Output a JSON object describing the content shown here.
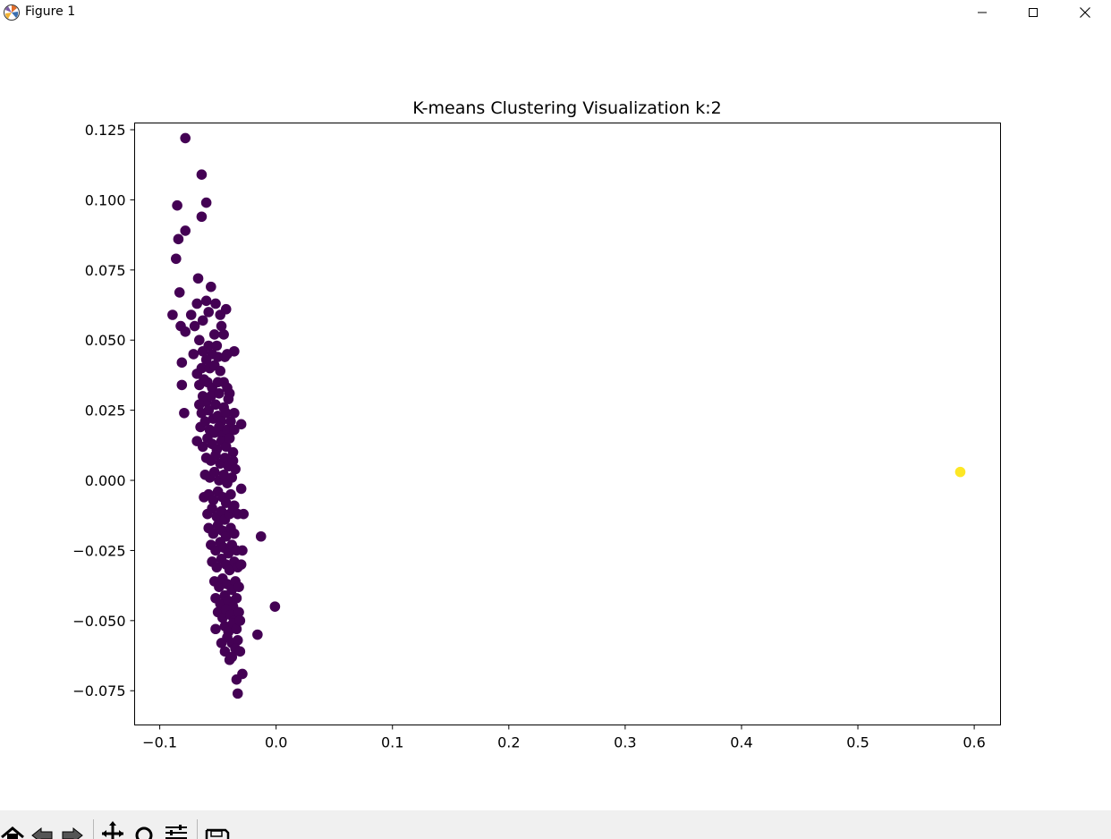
{
  "window": {
    "title": "Figure 1",
    "icons": {
      "app": "matplotlib-icon",
      "minimize": "minimize-icon",
      "maximize": "maximize-icon",
      "close": "close-icon"
    }
  },
  "toolbar": {
    "buttons": [
      "home-icon",
      "back-arrow-icon",
      "forward-arrow-icon",
      "pan-icon",
      "zoom-icon",
      "configure-subplots-icon",
      "save-icon"
    ]
  },
  "chart_data": {
    "type": "scatter",
    "title": "K-means Clustering Visualization k:2",
    "xlabel": "",
    "ylabel": "",
    "xlim": [
      -0.1216,
      0.6226
    ],
    "ylim": [
      -0.0872,
      0.1274
    ],
    "xticks": [
      -0.1,
      0.0,
      0.1,
      0.2,
      0.3,
      0.4,
      0.5,
      0.6
    ],
    "xtick_labels": [
      "−0.1",
      "0.0",
      "0.1",
      "0.2",
      "0.3",
      "0.4",
      "0.5",
      "0.6"
    ],
    "yticks": [
      -0.075,
      -0.05,
      -0.025,
      0.0,
      0.025,
      0.05,
      0.075,
      0.1,
      0.125
    ],
    "ytick_labels": [
      "−0.075",
      "−0.050",
      "−0.025",
      "0.000",
      "0.025",
      "0.050",
      "0.075",
      "0.100",
      "0.125"
    ],
    "grid": false,
    "legend": "none",
    "clusters": [
      {
        "color": "#440154",
        "points": [
          [
            -0.078,
            0.122
          ],
          [
            -0.064,
            0.109
          ],
          [
            -0.085,
            0.098
          ],
          [
            -0.06,
            0.099
          ],
          [
            -0.078,
            0.089
          ],
          [
            -0.064,
            0.094
          ],
          [
            -0.084,
            0.086
          ],
          [
            -0.086,
            0.079
          ],
          [
            -0.083,
            0.067
          ],
          [
            -0.067,
            0.072
          ],
          [
            -0.089,
            0.059
          ],
          [
            -0.082,
            0.055
          ],
          [
            -0.056,
            0.069
          ],
          [
            -0.043,
            0.061
          ],
          [
            -0.052,
            0.063
          ],
          [
            -0.06,
            0.064
          ],
          [
            -0.068,
            0.063
          ],
          [
            -0.073,
            0.059
          ],
          [
            -0.063,
            0.057
          ],
          [
            -0.048,
            0.059
          ],
          [
            -0.078,
            0.053
          ],
          [
            -0.07,
            0.055
          ],
          [
            -0.058,
            0.06
          ],
          [
            -0.053,
            0.052
          ],
          [
            -0.047,
            0.055
          ],
          [
            -0.045,
            0.052
          ],
          [
            -0.066,
            0.05
          ],
          [
            -0.071,
            0.045
          ],
          [
            -0.036,
            0.046
          ],
          [
            -0.081,
            0.042
          ],
          [
            -0.063,
            0.046
          ],
          [
            -0.058,
            0.048
          ],
          [
            -0.055,
            0.045
          ],
          [
            -0.051,
            0.048
          ],
          [
            -0.05,
            0.044
          ],
          [
            -0.044,
            0.044
          ],
          [
            -0.042,
            0.045
          ],
          [
            -0.081,
            0.034
          ],
          [
            -0.068,
            0.038
          ],
          [
            -0.064,
            0.04
          ],
          [
            -0.06,
            0.043
          ],
          [
            -0.057,
            0.04
          ],
          [
            -0.053,
            0.041
          ],
          [
            -0.048,
            0.039
          ],
          [
            -0.045,
            0.035
          ],
          [
            -0.066,
            0.034
          ],
          [
            -0.062,
            0.036
          ],
          [
            -0.059,
            0.035
          ],
          [
            -0.055,
            0.033
          ],
          [
            -0.05,
            0.035
          ],
          [
            -0.042,
            0.033
          ],
          [
            -0.04,
            0.031
          ],
          [
            -0.079,
            0.024
          ],
          [
            -0.063,
            0.03
          ],
          [
            -0.06,
            0.028
          ],
          [
            -0.056,
            0.03
          ],
          [
            -0.052,
            0.027
          ],
          [
            -0.049,
            0.031
          ],
          [
            -0.045,
            0.026
          ],
          [
            -0.041,
            0.029
          ],
          [
            -0.066,
            0.027
          ],
          [
            -0.064,
            0.024
          ],
          [
            -0.058,
            0.025
          ],
          [
            -0.054,
            0.022
          ],
          [
            -0.05,
            0.023
          ],
          [
            -0.047,
            0.021
          ],
          [
            -0.043,
            0.024
          ],
          [
            -0.036,
            0.024
          ],
          [
            -0.03,
            0.02
          ],
          [
            -0.065,
            0.019
          ],
          [
            -0.061,
            0.021
          ],
          [
            -0.057,
            0.018
          ],
          [
            -0.053,
            0.017
          ],
          [
            -0.049,
            0.019
          ],
          [
            -0.046,
            0.016
          ],
          [
            -0.042,
            0.018
          ],
          [
            -0.039,
            0.021
          ],
          [
            -0.036,
            0.018
          ],
          [
            -0.068,
            0.014
          ],
          [
            -0.063,
            0.012
          ],
          [
            -0.059,
            0.015
          ],
          [
            -0.055,
            0.013
          ],
          [
            -0.051,
            0.011
          ],
          [
            -0.047,
            0.014
          ],
          [
            -0.043,
            0.012
          ],
          [
            -0.04,
            0.015
          ],
          [
            -0.037,
            0.01
          ],
          [
            -0.06,
            0.008
          ],
          [
            -0.056,
            0.007
          ],
          [
            -0.052,
            0.009
          ],
          [
            -0.048,
            0.006
          ],
          [
            -0.044,
            0.008
          ],
          [
            -0.041,
            0.005
          ],
          [
            -0.037,
            0.007
          ],
          [
            -0.035,
            0.004
          ],
          [
            -0.061,
            0.002
          ],
          [
            -0.057,
            0.001
          ],
          [
            -0.053,
            0.003
          ],
          [
            -0.049,
            0.0
          ],
          [
            -0.045,
            0.002
          ],
          [
            -0.042,
            -0.001
          ],
          [
            -0.038,
            0.001
          ],
          [
            -0.03,
            -0.003
          ],
          [
            -0.062,
            -0.006
          ],
          [
            -0.058,
            -0.005
          ],
          [
            -0.054,
            -0.007
          ],
          [
            -0.05,
            -0.004
          ],
          [
            -0.046,
            -0.006
          ],
          [
            -0.043,
            -0.008
          ],
          [
            -0.039,
            -0.005
          ],
          [
            -0.036,
            -0.009
          ],
          [
            -0.059,
            -0.012
          ],
          [
            -0.055,
            -0.01
          ],
          [
            -0.051,
            -0.013
          ],
          [
            -0.047,
            -0.011
          ],
          [
            -0.044,
            -0.014
          ],
          [
            -0.04,
            -0.012
          ],
          [
            -0.037,
            -0.01
          ],
          [
            -0.033,
            -0.012
          ],
          [
            -0.028,
            -0.012
          ],
          [
            -0.058,
            -0.017
          ],
          [
            -0.054,
            -0.019
          ],
          [
            -0.05,
            -0.016
          ],
          [
            -0.046,
            -0.018
          ],
          [
            -0.043,
            -0.02
          ],
          [
            -0.039,
            -0.017
          ],
          [
            -0.036,
            -0.019
          ],
          [
            -0.013,
            -0.02
          ],
          [
            -0.056,
            -0.023
          ],
          [
            -0.052,
            -0.025
          ],
          [
            -0.048,
            -0.022
          ],
          [
            -0.045,
            -0.024
          ],
          [
            -0.041,
            -0.026
          ],
          [
            -0.038,
            -0.023
          ],
          [
            -0.034,
            -0.025
          ],
          [
            -0.029,
            -0.025
          ],
          [
            -0.055,
            -0.029
          ],
          [
            -0.051,
            -0.031
          ],
          [
            -0.047,
            -0.028
          ],
          [
            -0.043,
            -0.03
          ],
          [
            -0.04,
            -0.032
          ],
          [
            -0.036,
            -0.029
          ],
          [
            -0.033,
            -0.031
          ],
          [
            -0.03,
            -0.03
          ],
          [
            -0.053,
            -0.036
          ],
          [
            -0.049,
            -0.038
          ],
          [
            -0.046,
            -0.035
          ],
          [
            -0.042,
            -0.037
          ],
          [
            -0.038,
            -0.039
          ],
          [
            -0.035,
            -0.036
          ],
          [
            -0.032,
            -0.038
          ],
          [
            -0.052,
            -0.042
          ],
          [
            -0.048,
            -0.044
          ],
          [
            -0.044,
            -0.041
          ],
          [
            -0.041,
            -0.043
          ],
          [
            -0.037,
            -0.045
          ],
          [
            -0.034,
            -0.042
          ],
          [
            -0.05,
            -0.047
          ],
          [
            -0.046,
            -0.049
          ],
          [
            -0.043,
            -0.046
          ],
          [
            -0.039,
            -0.048
          ],
          [
            -0.036,
            -0.05
          ],
          [
            -0.032,
            -0.047
          ],
          [
            -0.001,
            -0.045
          ],
          [
            -0.044,
            -0.052
          ],
          [
            -0.041,
            -0.054
          ],
          [
            -0.037,
            -0.051
          ],
          [
            -0.034,
            -0.053
          ],
          [
            -0.031,
            -0.05
          ],
          [
            -0.052,
            -0.053
          ],
          [
            -0.047,
            -0.058
          ],
          [
            -0.042,
            -0.056
          ],
          [
            -0.038,
            -0.058
          ],
          [
            -0.033,
            -0.057
          ],
          [
            -0.016,
            -0.055
          ],
          [
            -0.044,
            -0.061
          ],
          [
            -0.04,
            -0.064
          ],
          [
            -0.035,
            -0.06
          ],
          [
            -0.031,
            -0.061
          ],
          [
            -0.038,
            -0.063
          ],
          [
            -0.029,
            -0.069
          ],
          [
            -0.034,
            -0.071
          ],
          [
            -0.033,
            -0.076
          ]
        ]
      },
      {
        "color": "#fde725",
        "points": [
          [
            0.588,
            0.003
          ]
        ]
      }
    ]
  }
}
